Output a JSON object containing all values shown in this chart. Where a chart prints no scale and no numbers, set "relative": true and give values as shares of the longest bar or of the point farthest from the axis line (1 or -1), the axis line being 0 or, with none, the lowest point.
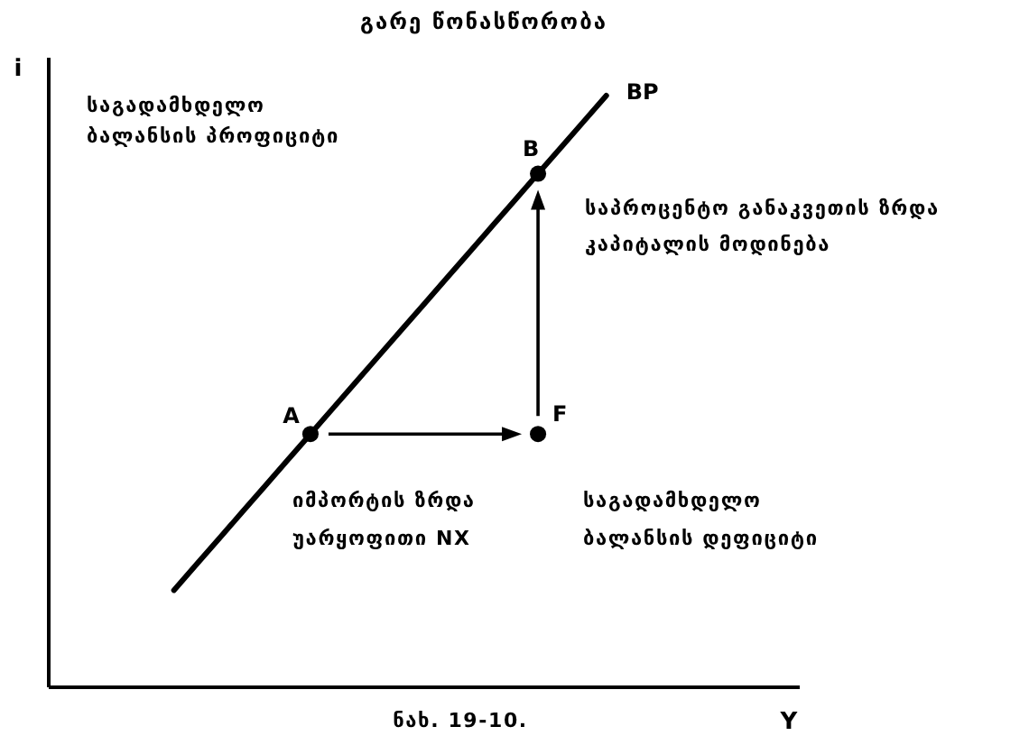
{
  "chart_data": {
    "type": "line",
    "title": "გარე წონასწორობა",
    "xlabel": "Y",
    "ylabel": "i",
    "relative": true,
    "categories": [
      null,
      null,
      null,
      null,
      null,
      null,
      null,
      null,
      null,
      null,
      null,
      null,
      null,
      null,
      null,
      null,
      null,
      null,
      null,
      null,
      null,
      null,
      null,
      null,
      null,
      null,
      null,
      null,
      null,
      null,
      null,
      null,
      null
    ],
    "series": [
      {
        "name": "BP",
        "color": "#000000",
        "values": [
          null,
          null,
          null,
          null,
          null,
          0.164,
          0.208,
          0.252,
          0.296,
          0.34,
          0.384,
          0.428,
          0.472,
          0.516,
          0.56,
          0.604,
          0.648,
          0.692,
          0.736,
          0.78,
          0.824,
          0.868,
          0.912,
          0.956,
          1,
          null,
          null,
          null,
          null,
          null,
          null,
          null,
          null
        ]
      },
      {
        "name": "A",
        "color": "#000000",
        "marker": "circle",
        "values": [
          null,
          null,
          null,
          null,
          null,
          null,
          null,
          null,
          null,
          null,
          null,
          0.428,
          null,
          null,
          null,
          null,
          null,
          null,
          null,
          null,
          null,
          null,
          null,
          null,
          null,
          null,
          null,
          null,
          null,
          null,
          null,
          null,
          null
        ]
      },
      {
        "name": "F",
        "color": "#000000",
        "marker": "circle",
        "values": [
          null,
          null,
          null,
          null,
          null,
          null,
          null,
          null,
          null,
          null,
          null,
          null,
          null,
          null,
          null,
          null,
          null,
          null,
          null,
          null,
          null,
          0.428,
          null,
          null,
          null,
          null,
          null,
          null,
          null,
          null,
          null,
          null,
          null
        ]
      },
      {
        "name": "B",
        "color": "#000000",
        "marker": "circle",
        "values": [
          null,
          null,
          null,
          null,
          null,
          null,
          null,
          null,
          null,
          null,
          null,
          null,
          null,
          null,
          null,
          null,
          null,
          null,
          null,
          null,
          null,
          0.868,
          null,
          null,
          null,
          null,
          null,
          null,
          null,
          null,
          null,
          null,
          null
        ]
      }
    ],
    "annotations": [
      "საგადამხდელო ბალანსის პროფიციტი",
      "საპროცენტო განაკვეთის ზრდა კაპიტალის მოდინება",
      "იმპორტის ზრდა უარყოფითი NX",
      "საგადამხდელო ბალანსის დეფიციტი",
      "ნახ. 19-10."
    ]
  }
}
